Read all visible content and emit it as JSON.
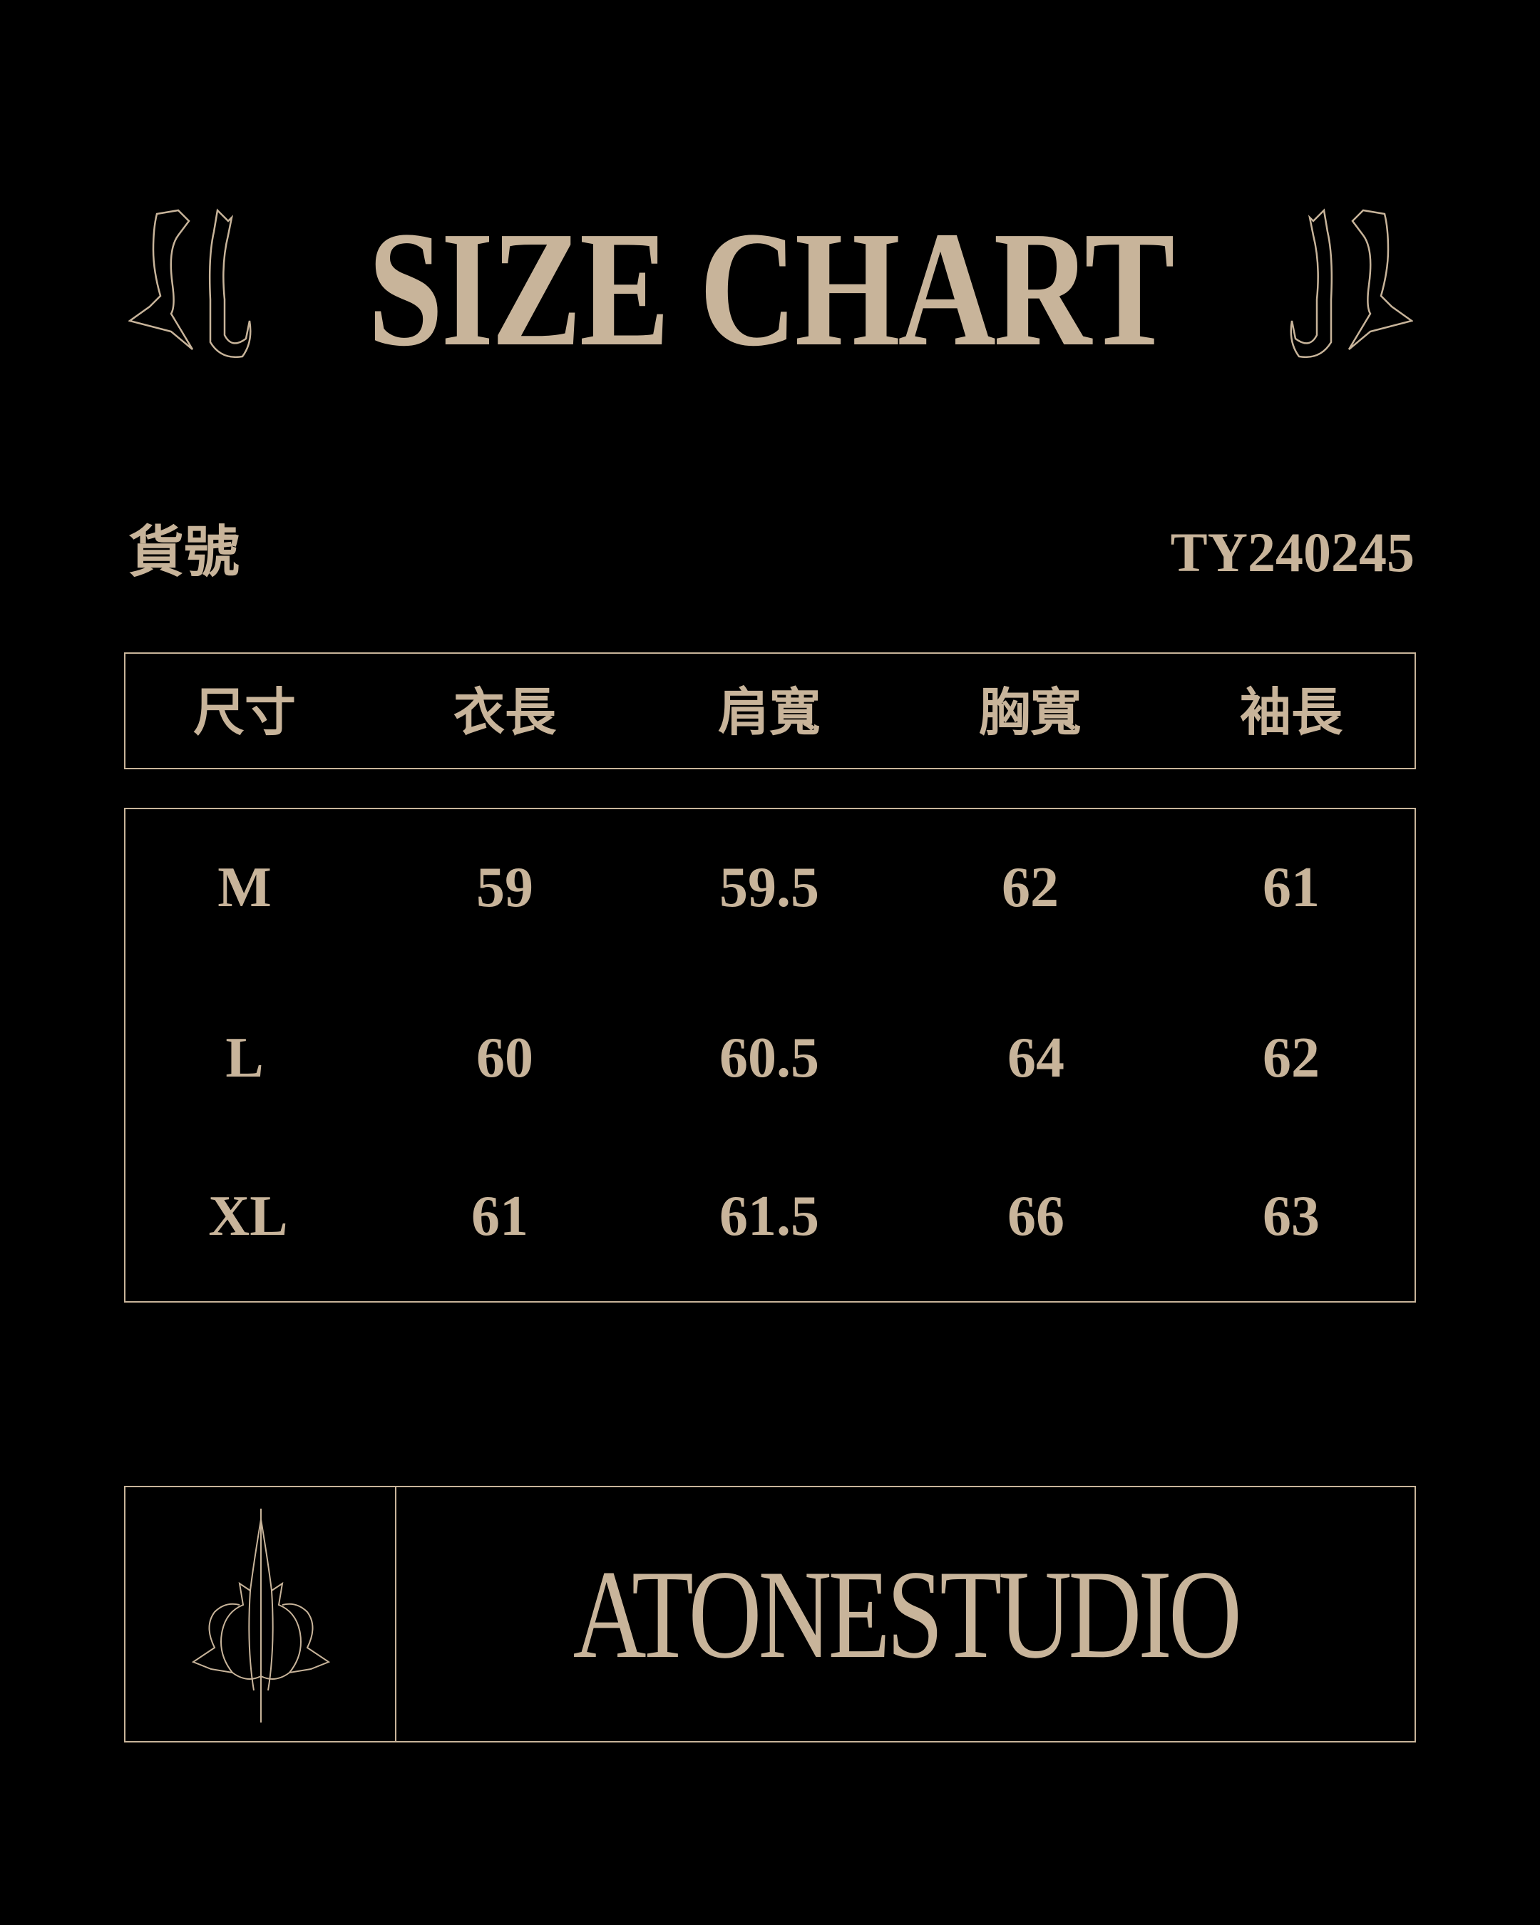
{
  "title": "SIZE CHART",
  "item_no": {
    "label": "貨號",
    "value": "TY240245"
  },
  "table": {
    "headers": [
      "尺寸",
      "衣長",
      "肩寬",
      "胸寬",
      "袖長"
    ],
    "rows": [
      [
        "M",
        "59",
        "59.5",
        "62",
        "61"
      ],
      [
        "L",
        "60",
        "60.5",
        "64",
        "62"
      ],
      [
        "XL",
        "61",
        "61.5",
        "66",
        "63"
      ]
    ]
  },
  "brand": {
    "name": "ATONESTUDIO",
    "logo": "gothic-monogram-logo"
  },
  "colors": {
    "background": "#000000",
    "accent": "#c8b49a"
  }
}
